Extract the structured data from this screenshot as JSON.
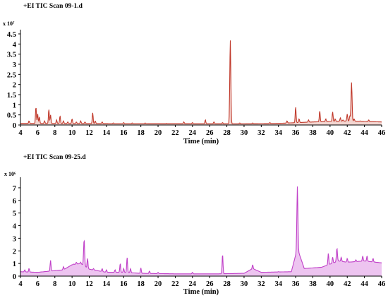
{
  "panels": [
    {
      "header": "+EI    TIC Scan    09-1.d",
      "y_scale_label": "x 10⁷",
      "xlabel": "Time (min)",
      "color": "#c0392b",
      "fill": "#f3d5d0"
    },
    {
      "header": "+EI    TIC Scan    09-25.d",
      "y_scale_label": "x 10⁶",
      "xlabel": "Time (min)",
      "color": "#c040c8",
      "fill": "#edc4f0"
    }
  ],
  "chart_data": [
    {
      "type": "line",
      "title": "+EI TIC Scan 09-1.d",
      "xlabel": "Time (min)",
      "ylabel": "x 10^7",
      "xlim": [
        4,
        46
      ],
      "ylim": [
        0,
        4.5
      ],
      "x_ticks": [
        4,
        6,
        8,
        10,
        12,
        14,
        16,
        18,
        20,
        22,
        24,
        26,
        28,
        30,
        32,
        34,
        36,
        38,
        40,
        42,
        44,
        46
      ],
      "y_ticks": [
        0,
        0.5,
        1,
        1.5,
        2,
        2.5,
        3,
        3.5,
        4,
        4.5
      ],
      "y_tick_labels": [
        "0",
        "0.5",
        "1",
        "1.5",
        "2",
        "2.5",
        "3",
        "3.5",
        "4",
        "4.5"
      ],
      "grid": false,
      "baseline": [
        [
          4.0,
          0.08
        ],
        [
          16.0,
          0.07
        ],
        [
          30.0,
          0.06
        ],
        [
          34.0,
          0.08
        ],
        [
          38.0,
          0.15
        ],
        [
          42.0,
          0.2
        ],
        [
          46.0,
          0.15
        ]
      ],
      "peaks": [
        [
          5.0,
          0.2
        ],
        [
          5.8,
          0.9
        ],
        [
          6.0,
          0.55
        ],
        [
          6.2,
          0.4
        ],
        [
          6.8,
          0.2
        ],
        [
          7.3,
          0.78
        ],
        [
          7.5,
          0.5
        ],
        [
          8.2,
          0.25
        ],
        [
          8.6,
          0.45
        ],
        [
          9.0,
          0.2
        ],
        [
          9.5,
          0.15
        ],
        [
          10.0,
          0.3
        ],
        [
          10.5,
          0.15
        ],
        [
          11.0,
          0.2
        ],
        [
          11.5,
          0.15
        ],
        [
          12.4,
          0.6
        ],
        [
          12.7,
          0.2
        ],
        [
          13.5,
          0.15
        ],
        [
          14.8,
          0.1
        ],
        [
          16.0,
          0.12
        ],
        [
          17.0,
          0.1
        ],
        [
          18.5,
          0.1
        ],
        [
          21.0,
          0.08
        ],
        [
          23.0,
          0.15
        ],
        [
          24.0,
          0.12
        ],
        [
          25.5,
          0.25
        ],
        [
          26.5,
          0.15
        ],
        [
          27.5,
          0.12
        ],
        [
          28.4,
          4.2
        ],
        [
          29.5,
          0.1
        ],
        [
          31.0,
          0.1
        ],
        [
          33.0,
          0.12
        ],
        [
          35.0,
          0.2
        ],
        [
          36.0,
          0.9
        ],
        [
          36.4,
          0.3
        ],
        [
          37.5,
          0.25
        ],
        [
          38.8,
          0.7
        ],
        [
          39.5,
          0.3
        ],
        [
          40.3,
          0.65
        ],
        [
          40.6,
          0.3
        ],
        [
          41.2,
          0.35
        ],
        [
          41.5,
          0.25
        ],
        [
          42.0,
          0.55
        ],
        [
          42.3,
          0.45
        ],
        [
          42.5,
          2.1
        ],
        [
          42.8,
          0.3
        ],
        [
          43.5,
          0.2
        ],
        [
          44.5,
          0.25
        ],
        [
          45.5,
          0.15
        ]
      ]
    },
    {
      "type": "line",
      "title": "+EI TIC Scan 09-25.d",
      "xlabel": "Time (min)",
      "ylabel": "x 10^6",
      "xlim": [
        4,
        46
      ],
      "ylim": [
        0,
        7.5
      ],
      "x_ticks": [
        4,
        6,
        8,
        10,
        12,
        14,
        16,
        18,
        20,
        22,
        24,
        26,
        28,
        30,
        32,
        34,
        36,
        38,
        40,
        42,
        44,
        46
      ],
      "y_ticks": [
        0,
        1,
        2,
        3,
        4,
        5,
        6,
        7
      ],
      "y_tick_labels": [
        "0",
        "1",
        "2",
        "3",
        "4",
        "5",
        "6",
        "7"
      ],
      "grid": false,
      "baseline": [
        [
          4.0,
          0.35
        ],
        [
          6.0,
          0.3
        ],
        [
          9.0,
          0.5
        ],
        [
          10.0,
          0.9
        ],
        [
          11.0,
          1.0
        ],
        [
          12.0,
          0.55
        ],
        [
          14.0,
          0.3
        ],
        [
          16.0,
          0.3
        ],
        [
          18.0,
          0.22
        ],
        [
          22.0,
          0.18
        ],
        [
          27.0,
          0.18
        ],
        [
          30.0,
          0.22
        ],
        [
          31.0,
          0.6
        ],
        [
          32.0,
          0.3
        ],
        [
          35.5,
          0.35
        ],
        [
          36.2,
          2.2
        ],
        [
          37.0,
          0.6
        ],
        [
          39.0,
          0.7
        ],
        [
          41.0,
          1.2
        ],
        [
          42.0,
          1.1
        ],
        [
          44.0,
          1.2
        ],
        [
          46.0,
          1.05
        ]
      ],
      "peaks": [
        [
          4.5,
          0.5
        ],
        [
          5.0,
          0.6
        ],
        [
          5.8,
          0.3
        ],
        [
          6.5,
          0.25
        ],
        [
          7.5,
          1.25
        ],
        [
          8.5,
          0.4
        ],
        [
          9.0,
          0.75
        ],
        [
          10.2,
          0.95
        ],
        [
          10.5,
          1.1
        ],
        [
          11.0,
          1.1
        ],
        [
          11.4,
          2.9
        ],
        [
          11.8,
          1.4
        ],
        [
          12.5,
          0.6
        ],
        [
          13.5,
          0.6
        ],
        [
          14.0,
          0.5
        ],
        [
          15.0,
          0.5
        ],
        [
          15.6,
          1.0
        ],
        [
          16.0,
          0.6
        ],
        [
          16.4,
          1.5
        ],
        [
          16.8,
          0.6
        ],
        [
          18.0,
          0.65
        ],
        [
          19.0,
          0.4
        ],
        [
          20.0,
          0.3
        ],
        [
          24.0,
          0.3
        ],
        [
          27.5,
          1.75
        ],
        [
          28.5,
          0.2
        ],
        [
          31.0,
          0.9
        ],
        [
          32.5,
          0.3
        ],
        [
          34.0,
          0.35
        ],
        [
          36.2,
          7.1
        ],
        [
          39.8,
          1.8
        ],
        [
          40.3,
          1.5
        ],
        [
          40.8,
          2.2
        ],
        [
          41.3,
          1.5
        ],
        [
          42.0,
          1.4
        ],
        [
          43.0,
          1.3
        ],
        [
          43.8,
          1.6
        ],
        [
          44.3,
          1.6
        ],
        [
          45.0,
          1.4
        ]
      ]
    }
  ]
}
